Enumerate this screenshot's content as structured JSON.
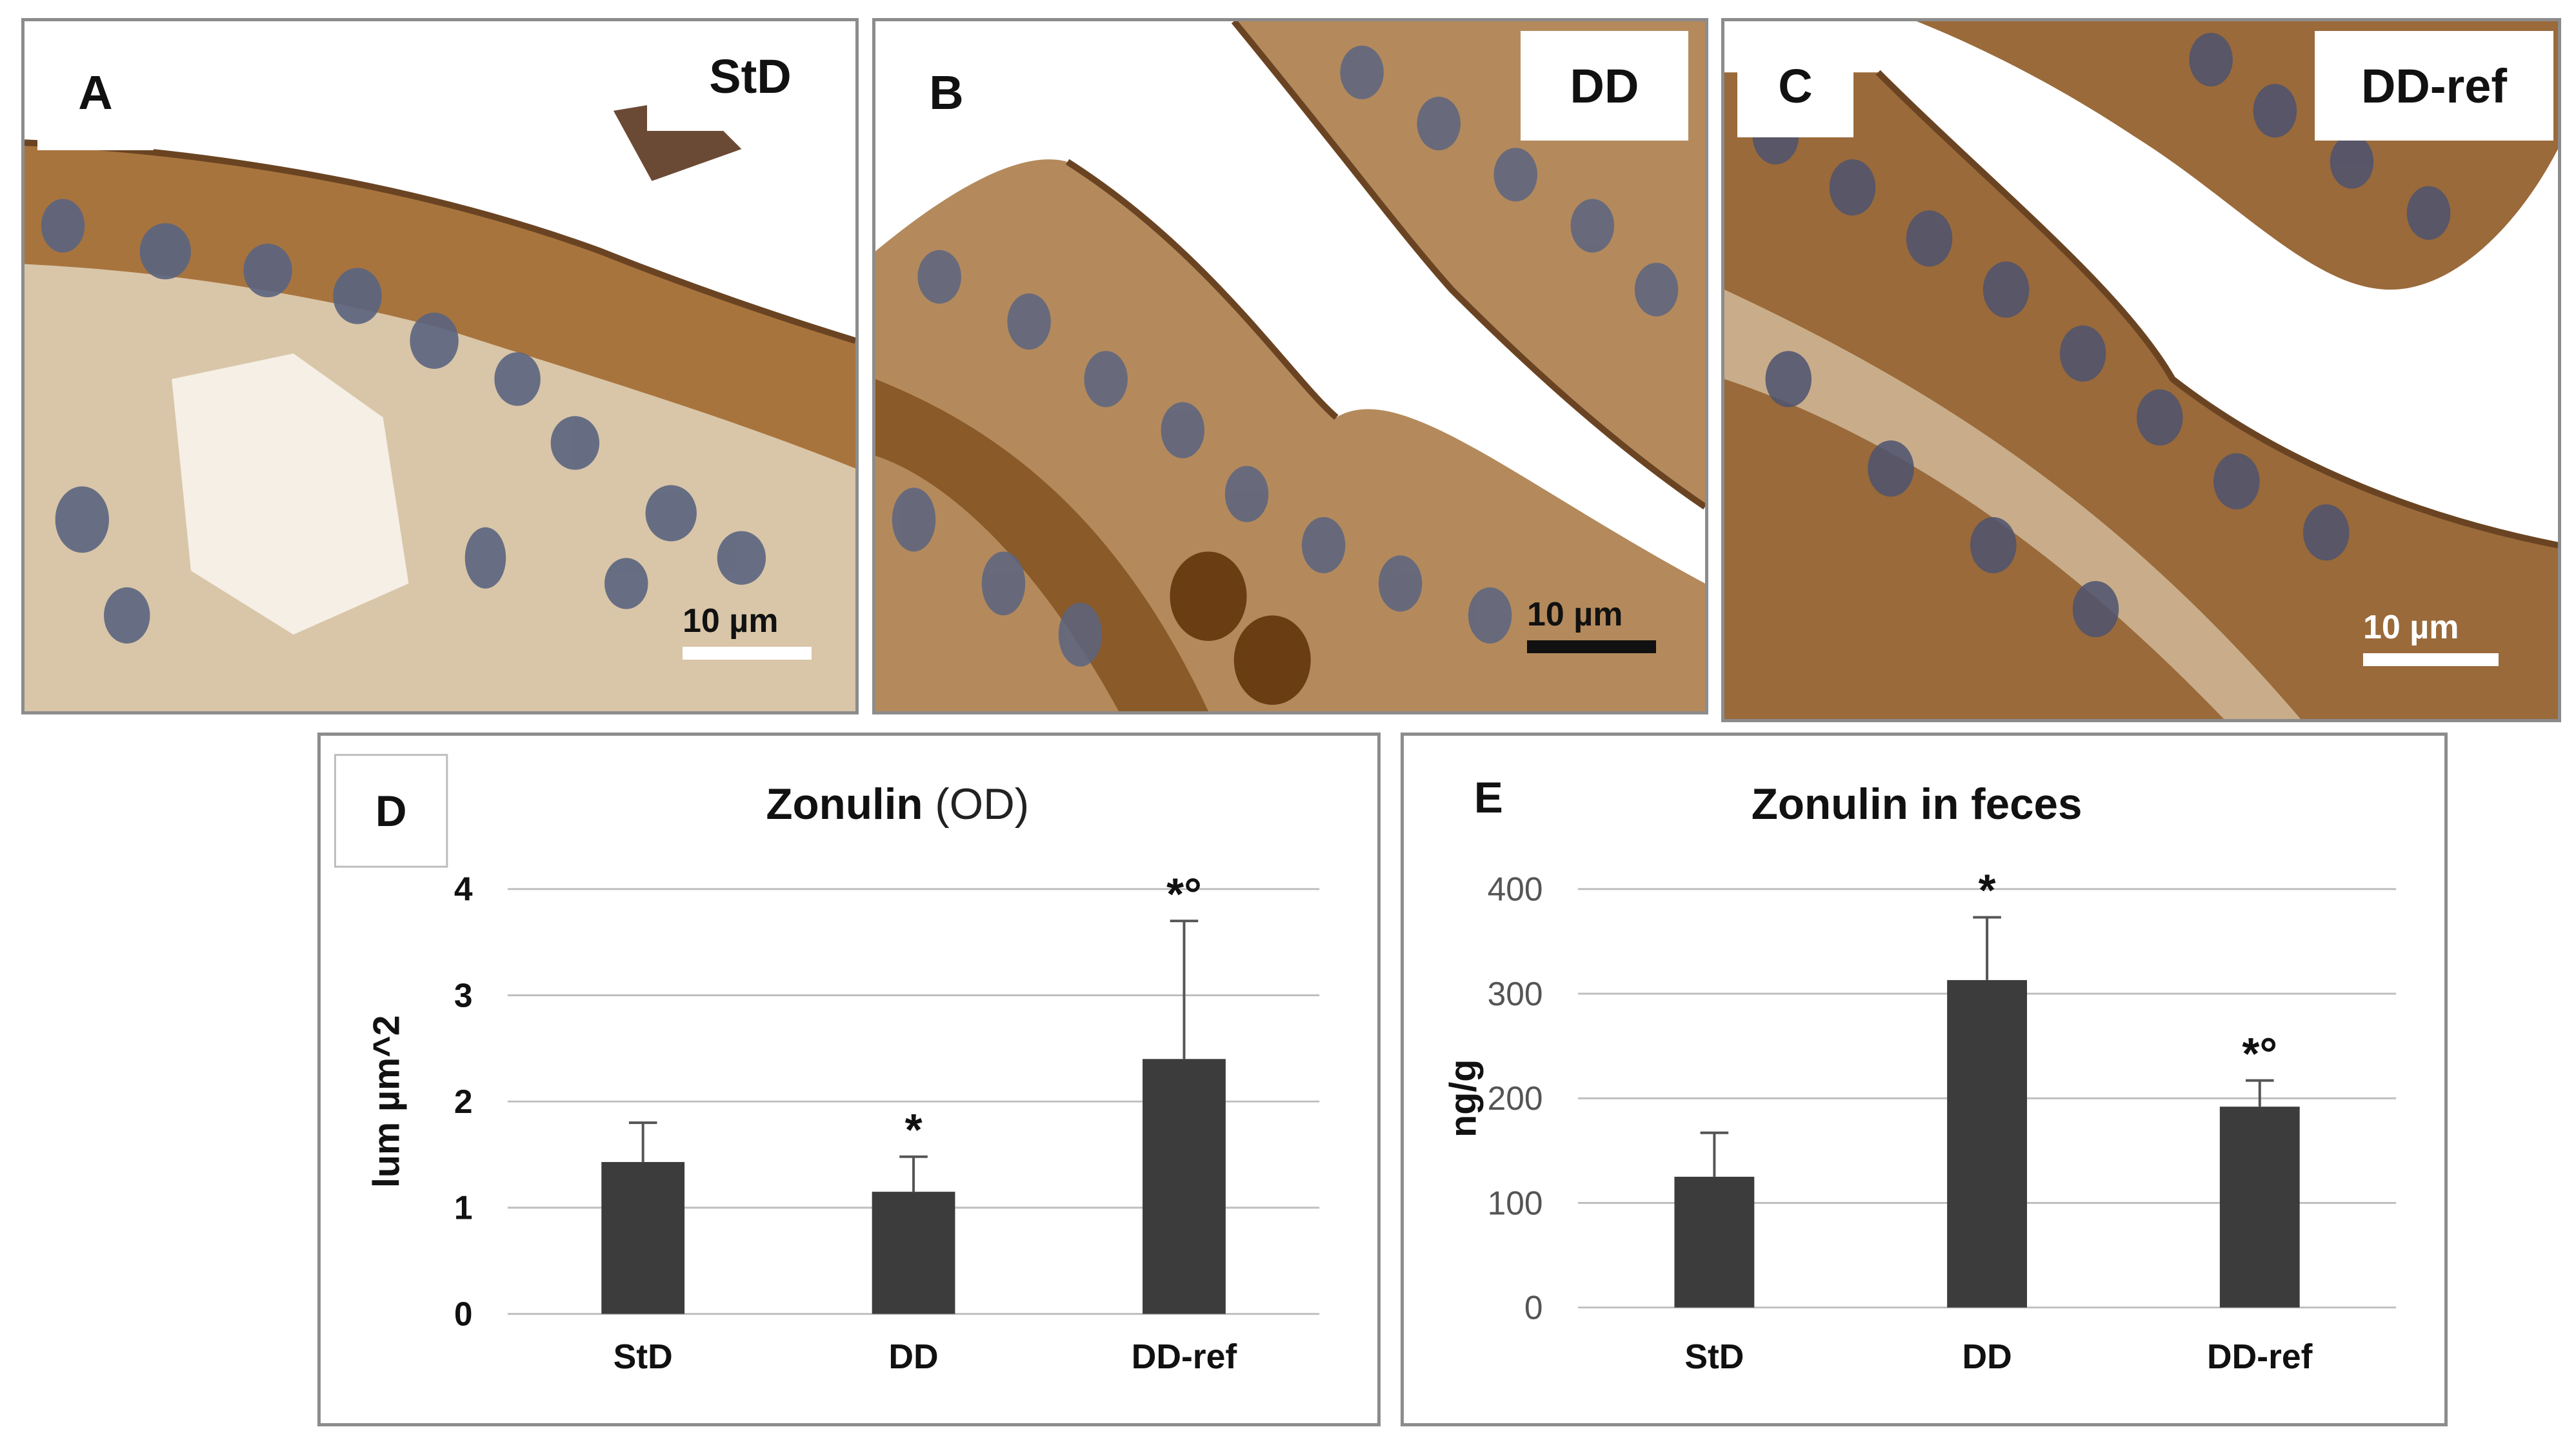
{
  "panels": {
    "A": {
      "letter": "A",
      "group": "StD",
      "scale_text": "10 µm",
      "scale_color": "#ffffff"
    },
    "B": {
      "letter": "B",
      "group": "DD",
      "scale_text": "10 µm",
      "scale_color": "#111111"
    },
    "C": {
      "letter": "C",
      "group": "DD-ref",
      "scale_text": "10 µm",
      "scale_color": "#ffffff"
    }
  },
  "colors": {
    "bar": "#3c3c3c",
    "grid": "#bfbfbf",
    "tissue_brown": "#9a6a3a",
    "nucleus_blue": "#5a6480",
    "panel_border": "#8c8c8c"
  },
  "chart_data": [
    {
      "panel_letter": "D",
      "type": "bar",
      "title": "Zonulin",
      "title_suffix": "(OD)",
      "ylabel": "lum µm^2",
      "categories": [
        "StD",
        "DD",
        "DD-ref"
      ],
      "values": [
        1.43,
        1.15,
        2.4
      ],
      "errors": [
        0.37,
        0.33,
        1.3
      ],
      "annotations": [
        "",
        "*",
        "*°"
      ],
      "yticks": [
        "0",
        "1",
        "2",
        "3",
        "4"
      ],
      "ylim": [
        0,
        4
      ],
      "grid": true
    },
    {
      "panel_letter": "E",
      "type": "bar",
      "title": "Zonulin in feces",
      "ylabel": "ng/g",
      "categories": [
        "StD",
        "DD",
        "DD-ref"
      ],
      "values": [
        125,
        313,
        192
      ],
      "errors": [
        42,
        60,
        25
      ],
      "annotations": [
        "",
        "*",
        "*°"
      ],
      "yticks": [
        "0",
        "100",
        "200",
        "300",
        "400"
      ],
      "ylim": [
        0,
        400
      ],
      "grid": true
    }
  ]
}
